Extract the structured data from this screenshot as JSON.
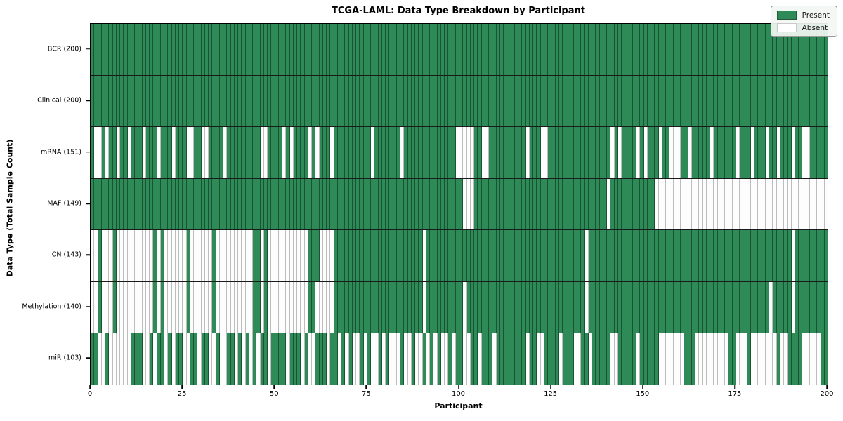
{
  "chart_data": {
    "type": "heatmap",
    "title": "TCGA-LAML: Data Type Breakdown by Participant",
    "xlabel": "Participant",
    "ylabel": "Data Type (Total Sample Count)",
    "x_ticks": [
      0,
      25,
      50,
      75,
      100,
      125,
      150,
      175,
      200
    ],
    "x_range": [
      0,
      200
    ],
    "n_participants": 200,
    "cell_states": [
      "Present",
      "Absent"
    ],
    "colors": {
      "present": "#2e8b57",
      "absent": "#ffffff"
    },
    "legend": {
      "position": "upper right",
      "entries": [
        {
          "label": "Present",
          "color": "#2e8b57"
        },
        {
          "label": "Absent",
          "color": "#ffffff"
        }
      ]
    },
    "rows": [
      {
        "label": "BCR (200)",
        "data_type": "BCR",
        "present_count": 200,
        "absent_participants": []
      },
      {
        "label": "Clinical (200)",
        "data_type": "Clinical",
        "present_count": 200,
        "absent_participants": []
      },
      {
        "label": "mRNA (151)",
        "data_type": "mRNA",
        "present_count": 151,
        "absent_participants": [
          1,
          2,
          4,
          7,
          10,
          14,
          18,
          22,
          26,
          27,
          30,
          31,
          36,
          46,
          47,
          52,
          54,
          59,
          61,
          65,
          76,
          84,
          99,
          100,
          101,
          102,
          103,
          106,
          107,
          118,
          122,
          123,
          141,
          143,
          148,
          150,
          154,
          157,
          158,
          159,
          162,
          168,
          175,
          179,
          183,
          186,
          190,
          193,
          194
        ]
      },
      {
        "label": "MAF (149)",
        "data_type": "MAF",
        "present_count": 149,
        "absent_participants": [
          101,
          102,
          103,
          140,
          153,
          154,
          155,
          156,
          157,
          158,
          159,
          160,
          161,
          162,
          163,
          164,
          165,
          166,
          167,
          168,
          169,
          170,
          171,
          172,
          173,
          174,
          175,
          176,
          177,
          178,
          179,
          180,
          181,
          182,
          183,
          184,
          185,
          186,
          187,
          188,
          189,
          190,
          191,
          192,
          193,
          194,
          195,
          196,
          197,
          198,
          199
        ]
      },
      {
        "label": "CN (143)",
        "data_type": "CN",
        "present_count": 143,
        "absent_participants": [
          0,
          1,
          3,
          4,
          5,
          7,
          8,
          9,
          10,
          11,
          12,
          13,
          14,
          15,
          16,
          18,
          20,
          21,
          22,
          23,
          24,
          25,
          27,
          28,
          29,
          30,
          31,
          32,
          34,
          35,
          36,
          37,
          38,
          39,
          40,
          41,
          42,
          43,
          46,
          48,
          49,
          50,
          51,
          52,
          53,
          54,
          55,
          56,
          57,
          58,
          62,
          63,
          64,
          65,
          90,
          134,
          190
        ]
      },
      {
        "label": "Methylation (140)",
        "data_type": "Methylation",
        "present_count": 140,
        "absent_participants": [
          0,
          1,
          3,
          4,
          5,
          7,
          8,
          9,
          10,
          11,
          12,
          13,
          14,
          15,
          16,
          18,
          20,
          21,
          22,
          23,
          24,
          25,
          27,
          28,
          29,
          30,
          31,
          32,
          34,
          35,
          36,
          37,
          38,
          39,
          40,
          41,
          42,
          43,
          46,
          48,
          49,
          50,
          51,
          52,
          53,
          54,
          55,
          56,
          57,
          58,
          61,
          62,
          63,
          64,
          65,
          90,
          101,
          134,
          184,
          190
        ]
      },
      {
        "label": "miR (103)",
        "data_type": "miR",
        "present_count": 103,
        "absent_participants": [
          2,
          3,
          5,
          6,
          7,
          8,
          9,
          10,
          14,
          15,
          17,
          20,
          22,
          25,
          26,
          29,
          32,
          33,
          35,
          36,
          39,
          41,
          43,
          45,
          48,
          53,
          57,
          59,
          60,
          64,
          67,
          69,
          71,
          72,
          74,
          76,
          77,
          79,
          81,
          82,
          83,
          85,
          86,
          88,
          89,
          91,
          93,
          95,
          96,
          98,
          101,
          102,
          105,
          109,
          118,
          121,
          122,
          127,
          131,
          132,
          135,
          141,
          142,
          148,
          154,
          155,
          156,
          157,
          158,
          159,
          160,
          164,
          165,
          166,
          167,
          168,
          169,
          170,
          171,
          172,
          175,
          176,
          177,
          179,
          180,
          181,
          182,
          183,
          184,
          185,
          187,
          188,
          193,
          194,
          195,
          196,
          197
        ]
      }
    ]
  }
}
